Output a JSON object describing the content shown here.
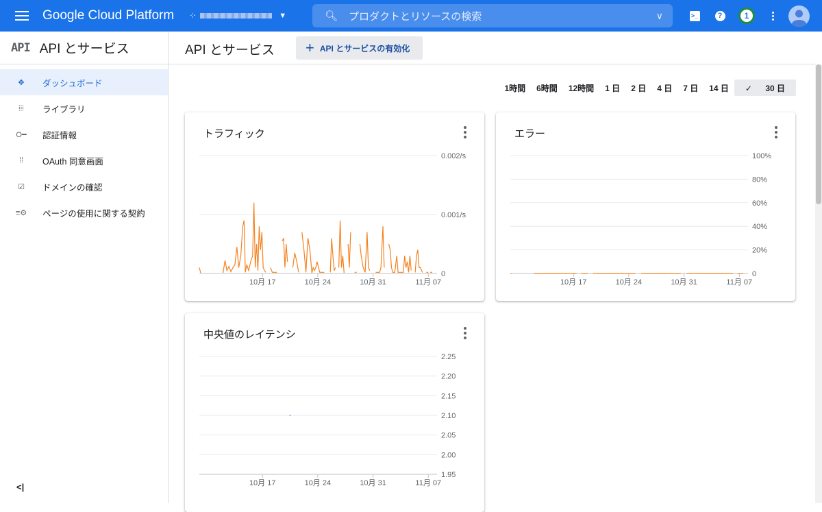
{
  "header": {
    "brand": "Google Cloud Platform",
    "search_placeholder": "プロダクトとリソースの検索",
    "notification_count": "1",
    "accent": "#1a73e8"
  },
  "sidebar": {
    "api_logo": "API",
    "title": "API とサービス",
    "items": [
      {
        "label": "ダッシュボード",
        "icon": "dashboard-icon",
        "active": true
      },
      {
        "label": "ライブラリ",
        "icon": "library-icon"
      },
      {
        "label": "認証情報",
        "icon": "key-icon"
      },
      {
        "label": "OAuth 同意画面",
        "icon": "oauth-icon"
      },
      {
        "label": "ドメインの確認",
        "icon": "checkbox-icon"
      },
      {
        "label": "ページの使用に関する契約",
        "icon": "settings-list-icon"
      }
    ],
    "collapse_label": "<|"
  },
  "main": {
    "title": "API とサービス",
    "enable_label": "API とサービスの有効化",
    "ranges": [
      "1時間",
      "6時間",
      "12時間",
      "1 日",
      "2 日",
      "4 日",
      "7 日",
      "14 日",
      "30 日"
    ],
    "selected_range": "30 日"
  },
  "chart_data": [
    {
      "type": "line",
      "title": "トラフィック",
      "x_ticks": [
        "10月 17",
        "10月 24",
        "10月 31",
        "11月 07"
      ],
      "y_ticks": [
        "0",
        "0.001/s",
        "0.002/s"
      ],
      "ylim": [
        0,
        0.002
      ],
      "xlim": [
        "10-09",
        "11-07T14"
      ],
      "color": "#f48221",
      "points": [
        [
          "10-09T00",
          0.0001
        ],
        [
          "10-09T04",
          1e-05
        ],
        null,
        [
          "10-12T00",
          1e-05
        ],
        [
          "10-12T06",
          0.00022
        ],
        [
          "10-12T12",
          5e-05
        ],
        [
          "10-12T18",
          0.00012
        ],
        [
          "10-13T00",
          3e-05
        ],
        [
          "10-13T06",
          0.0001
        ],
        [
          "10-13T12",
          0.00015
        ],
        [
          "10-13T18",
          0.00045
        ],
        [
          "10-14T00",
          0.0001
        ],
        [
          "10-14T06",
          0.0003
        ],
        [
          "10-14T12",
          0.0008
        ],
        [
          "10-14T16",
          0.0009
        ],
        [
          "10-14T20",
          2e-05
        ],
        [
          "10-15T00",
          0.00015
        ],
        [
          "10-15T06",
          5e-05
        ],
        [
          "10-15T12",
          0.0002
        ],
        [
          "10-15T18",
          0.0003
        ],
        [
          "10-15T22",
          0.0012
        ],
        [
          "10-16T02",
          0.0001
        ],
        [
          "10-16T06",
          0.0005
        ],
        [
          "10-16T10",
          5e-05
        ],
        [
          "10-16T14",
          0.0008
        ],
        [
          "10-16T18",
          0.0004
        ],
        [
          "10-16T22",
          0.0007
        ],
        [
          "10-17T02",
          0.0001
        ],
        [
          "10-17T06",
          5e-05
        ],
        [
          "10-17T10",
          2e-05
        ],
        null,
        [
          "10-18T00",
          0.0001
        ],
        [
          "10-18T06",
          2e-05
        ],
        [
          "10-18T20",
          2e-05
        ],
        null,
        [
          "10-19T12",
          0.00055
        ],
        [
          "10-19T16",
          0.0006
        ],
        [
          "10-19T20",
          0.0001
        ],
        [
          "10-20T00",
          0.0005
        ],
        [
          "10-20T04",
          0.0002
        ],
        null,
        [
          "10-20T20",
          0.0001
        ],
        [
          "10-21T02",
          0.00035
        ],
        [
          "10-21T08",
          0.0002
        ],
        [
          "10-21T14",
          2e-05
        ],
        null,
        [
          "10-22T00",
          0.0007
        ],
        [
          "10-22T06",
          0.0004
        ],
        [
          "10-22T12",
          2e-05
        ],
        [
          "10-22T18",
          0.0006
        ],
        [
          "10-23T00",
          0.0004
        ],
        [
          "10-23T06",
          1e-05
        ],
        [
          "10-23T10",
          0.0001
        ],
        [
          "10-23T14",
          5e-05
        ],
        [
          "10-23T18",
          0.0001
        ],
        [
          "10-23T22",
          0.0002
        ],
        [
          "10-24T02",
          0.0001
        ],
        [
          "10-24T06",
          2e-05
        ],
        [
          "10-24T20",
          2e-05
        ],
        null,
        [
          "10-25T14",
          2e-05
        ],
        [
          "10-25T18",
          0.0006
        ],
        [
          "10-25T22",
          0.0003
        ],
        [
          "10-26T02",
          5e-05
        ],
        [
          "10-26T06",
          0.0001
        ],
        null,
        [
          "10-26T16",
          0.0001
        ],
        [
          "10-26T20",
          0.0009
        ],
        [
          "10-27T00",
          0.0001
        ],
        [
          "10-27T04",
          0.0003
        ],
        [
          "10-27T08",
          1e-05
        ],
        null,
        [
          "10-27T20",
          0.0005
        ],
        [
          "10-28T00",
          0.0001
        ],
        [
          "10-28T04",
          0.0007
        ],
        null,
        [
          "10-28T16",
          2e-05
        ],
        [
          "10-28T22",
          2e-05
        ],
        null,
        [
          "10-29T08",
          0.0005
        ],
        [
          "10-29T12",
          0.0003
        ],
        [
          "10-29T18",
          0.0001
        ],
        [
          "10-30T00",
          2e-05
        ],
        [
          "10-30T06",
          0.0007
        ],
        [
          "10-30T10",
          0.0001
        ],
        [
          "10-30T14",
          5e-05
        ],
        null,
        [
          "10-31T08",
          2e-05
        ],
        [
          "10-31T20",
          2e-05
        ],
        [
          "11-01T00",
          0.0001
        ],
        [
          "11-01T06",
          0.0008
        ],
        [
          "11-01T10",
          0.0001
        ],
        null,
        [
          "11-02T00",
          0.0005
        ],
        [
          "11-02T04",
          0.0004
        ],
        [
          "11-02T08",
          0.0001
        ],
        [
          "11-02T12",
          2e-05
        ],
        [
          "11-02T18",
          2e-05
        ],
        [
          "11-03T00",
          0.0003
        ],
        [
          "11-03T04",
          2e-05
        ],
        [
          "11-03T12",
          2e-05
        ],
        [
          "11-03T20",
          2e-05
        ],
        [
          "11-04T00",
          0.0003
        ],
        [
          "11-04T04",
          0.0001
        ],
        [
          "11-04T08",
          0.0002
        ],
        [
          "11-04T12",
          2e-05
        ],
        [
          "11-04T16",
          0.0003
        ],
        [
          "11-04T20",
          5e-05
        ],
        null,
        [
          "11-05T08",
          2e-05
        ],
        [
          "11-05T12",
          0.0003
        ],
        [
          "11-05T16",
          0.0004
        ],
        [
          "11-05T20",
          0.0001
        ],
        [
          "11-06T00",
          0.0001
        ],
        [
          "11-06T06",
          2e-05
        ],
        null,
        [
          "11-06T18",
          2e-05
        ],
        [
          "11-07T00",
          2e-05
        ],
        null,
        [
          "11-07T06",
          2e-05
        ],
        [
          "11-07T12",
          2e-05
        ]
      ]
    },
    {
      "type": "line",
      "title": "エラー",
      "x_ticks": [
        "10月 17",
        "10月 24",
        "10月 31",
        "11月 07"
      ],
      "y_ticks": [
        "0",
        "20%",
        "40%",
        "60%",
        "80%",
        "100%"
      ],
      "ylim": [
        0,
        100
      ],
      "xlim": [
        "10-09",
        "11-07T14"
      ],
      "color": "#f48221",
      "points": [
        [
          "10-09T00",
          0
        ],
        [
          "10-09T04",
          0
        ],
        null,
        [
          "10-12T00",
          0
        ],
        [
          "10-17T10",
          0
        ],
        null,
        [
          "10-18T00",
          0
        ],
        [
          "10-18T20",
          0
        ],
        null,
        [
          "10-19T12",
          0
        ],
        [
          "10-24T20",
          0
        ],
        null,
        [
          "10-25T14",
          0
        ],
        [
          "10-30T14",
          0
        ],
        null,
        [
          "10-31T08",
          0
        ],
        [
          "11-06T06",
          0
        ],
        null,
        [
          "11-06T18",
          0
        ],
        [
          "11-07T12",
          0
        ]
      ]
    },
    {
      "type": "line",
      "title": "中央値のレイテンシ",
      "x_ticks": [
        "10月 17",
        "10月 24",
        "10月 31",
        "11月 07"
      ],
      "y_ticks": [
        "1.95",
        "2.00",
        "2.05",
        "2.10",
        "2.15",
        "2.20",
        "2.25"
      ],
      "ylim": [
        1.95,
        2.25
      ],
      "xlim": [
        "10-09",
        "11-07T14"
      ],
      "color": "#4285f4",
      "points": [
        [
          "10-20T10",
          2.1
        ],
        [
          "10-20T14",
          2.1
        ]
      ]
    }
  ]
}
